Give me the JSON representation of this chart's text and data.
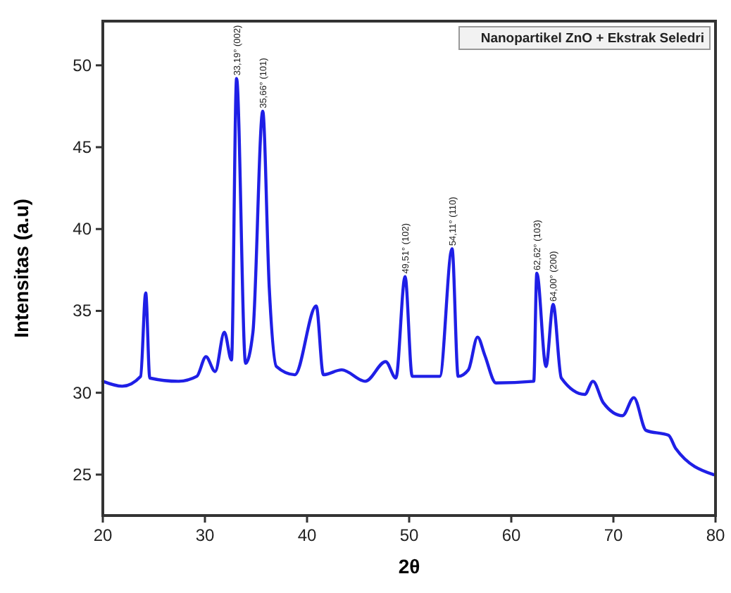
{
  "chart_data": {
    "type": "line",
    "xlabel": "2θ",
    "ylabel": "Intensitas (a.u)",
    "xlim": [
      20,
      80
    ],
    "ylim": [
      22.5,
      52.7
    ],
    "xticks": [
      20,
      30,
      40,
      50,
      60,
      70,
      80
    ],
    "yticks": [
      25,
      30,
      35,
      40,
      45,
      50
    ],
    "grid": false,
    "legend": "top right",
    "marker": "none",
    "line_style": "solid",
    "series": [
      {
        "name": "Nanopartikel ZnO + Ekstrak Seledri",
        "color": "#1f1fe6",
        "x": [
          20.0,
          21.9,
          23.7,
          24.2,
          24.6,
          27.4,
          29.2,
          30.1,
          31.0,
          31.9,
          32.6,
          33.1,
          33.98,
          34.7,
          35.66,
          36.3,
          37.0,
          38.8,
          40.9,
          41.6,
          43.4,
          45.7,
          47.7,
          48.7,
          49.6,
          50.3,
          53.0,
          54.2,
          54.8,
          55.8,
          56.7,
          57.4,
          58.5,
          62.2,
          62.5,
          63.4,
          64.1,
          64.9,
          67.2,
          68.0,
          69.0,
          70.9,
          72.0,
          73.2,
          75.4,
          76.1,
          79.8
        ],
        "values": [
          30.7,
          30.4,
          31.0,
          36.1,
          30.9,
          30.7,
          31.0,
          32.2,
          31.3,
          33.7,
          32.0,
          49.2,
          31.8,
          33.7,
          47.2,
          36.4,
          31.6,
          31.1,
          35.3,
          31.1,
          31.4,
          30.7,
          31.9,
          30.9,
          37.1,
          31.0,
          31.0,
          38.8,
          31.0,
          31.4,
          33.4,
          32.3,
          30.6,
          30.7,
          37.3,
          31.6,
          35.4,
          30.9,
          29.9,
          30.7,
          29.4,
          28.6,
          29.7,
          27.7,
          27.4,
          26.6,
          25.0
        ]
      }
    ],
    "annotations": [
      {
        "text": "33,19° (002)",
        "x": 33.1,
        "y": 49.2
      },
      {
        "text": "35,66° (101)",
        "x": 35.66,
        "y": 47.2
      },
      {
        "text": "49,51° (102)",
        "x": 49.6,
        "y": 37.1
      },
      {
        "text": "54,11° (110)",
        "x": 54.2,
        "y": 38.8
      },
      {
        "text": "62,62° (103)",
        "x": 62.5,
        "y": 37.3
      },
      {
        "text": "64,00° (200)",
        "x": 64.1,
        "y": 35.4
      }
    ]
  }
}
